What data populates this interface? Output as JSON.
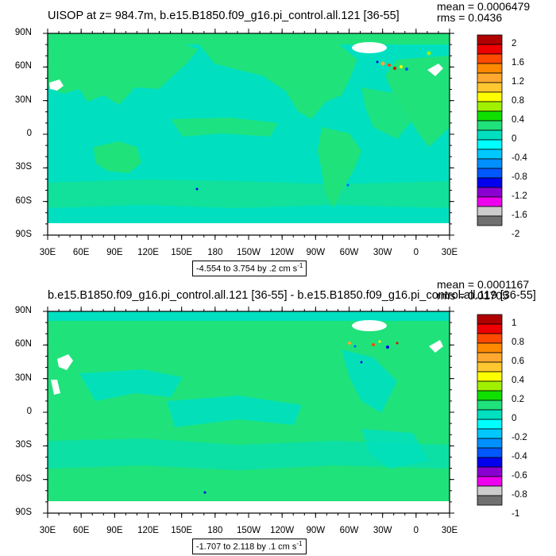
{
  "panels": [
    {
      "title": "UISOP at z= 984.7m, b.e15.B1850.f09_g16.pi_control.all.121 [36-55]",
      "mean_text": "mean = 0.0006479",
      "rms_text": "rms = 0.0436",
      "range_text": "-4.554 to 3.754 by .2 cm s",
      "range_exp": "-1",
      "lat_labels": [
        "90N",
        "60N",
        "30N",
        "0",
        "30S",
        "60S",
        "90S"
      ],
      "lon_labels": [
        "30E",
        "60E",
        "90E",
        "120E",
        "150E",
        "180",
        "150W",
        "120W",
        "90W",
        "60W",
        "30W",
        "0",
        "30E"
      ],
      "colorbar_labels": [
        "2",
        "1.6",
        "1.2",
        "0.8",
        "0.4",
        "0",
        "-0.4",
        "-0.8",
        "-1.2",
        "-1.6",
        "-2"
      ],
      "fill_colors": {
        "background": "#00e0c0",
        "land": "#1fe27a",
        "ice": "#ffffff"
      }
    },
    {
      "title": "b.e15.B1850.f09_g16.pi_control.all.121 [36-55] - b.e15.B1850.f09_g16.pi_control.all.119 [36-55]",
      "mean_text": "mean = 0.0001167",
      "rms_text": "rms = 0.01705",
      "range_text": "-1.707 to 2.118 by .1 cm s",
      "range_exp": "-1",
      "lat_labels": [
        "90N",
        "60N",
        "30N",
        "0",
        "30S",
        "60S",
        "90S"
      ],
      "lon_labels": [
        "30E",
        "60E",
        "90E",
        "120E",
        "150E",
        "180",
        "150W",
        "120W",
        "90W",
        "60W",
        "30W",
        "0",
        "30E"
      ],
      "colorbar_labels": [
        "1",
        "0.8",
        "0.6",
        "0.4",
        "0.2",
        "0",
        "-0.2",
        "-0.4",
        "-0.6",
        "-0.8",
        "-1"
      ],
      "fill_colors": {
        "background": "#1fe27a",
        "land": "#00e0c0",
        "ice": "#ffffff"
      }
    }
  ],
  "colorbar": {
    "colors": [
      "#b00000",
      "#ee0000",
      "#ff4a00",
      "#ff8a00",
      "#ffa830",
      "#ffc830",
      "#ffff00",
      "#a0f000",
      "#10e000",
      "#1fe27a",
      "#00e0c0",
      "#00ffff",
      "#00c8ff",
      "#0090ff",
      "#0058ff",
      "#0000ee",
      "#8a00d0",
      "#ee00ee",
      "#cccccc",
      "#707070"
    ]
  }
}
